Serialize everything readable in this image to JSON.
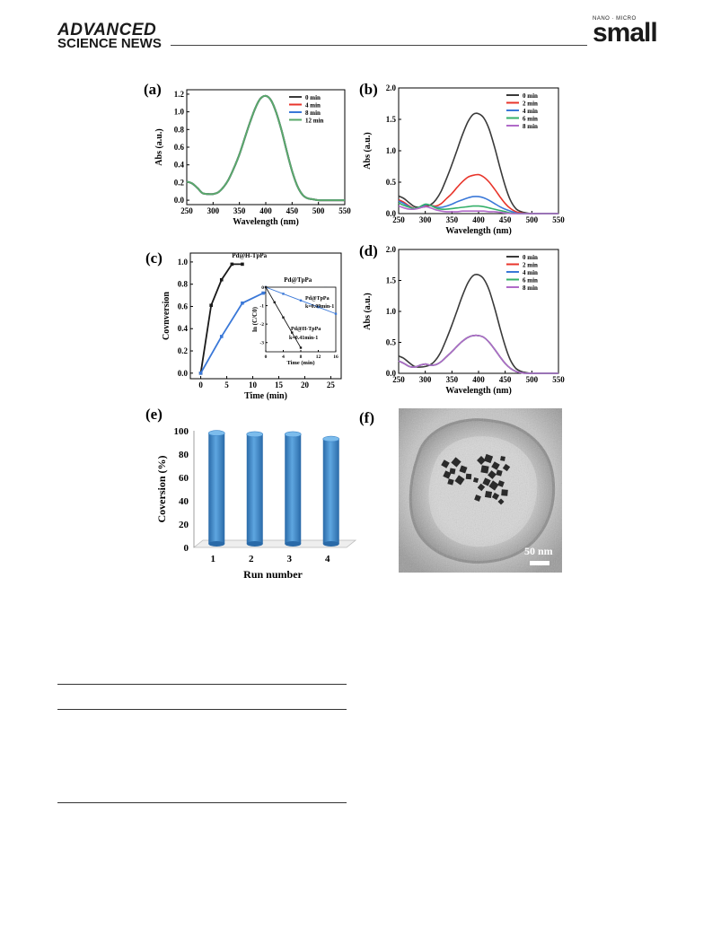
{
  "header": {
    "brand_top": "ADVANCED",
    "brand_bottom": "SCIENCE NEWS",
    "journal_kicker": "NANO · MICRO",
    "journal_name": "small"
  },
  "colors": {
    "black": "#3a3a3a",
    "red": "#e8352b",
    "blue": "#3a78d8",
    "green": "#35b06a",
    "purple": "#b06ac8",
    "panel_a_green": "#5aa86a",
    "bar_blue": "#3f86c8"
  },
  "chart_data": [
    {
      "id": "a",
      "panel_label": "(a)",
      "type": "line",
      "xlabel": "Wavelength (nm)",
      "ylabel": "Abs (a.u.)",
      "xlim": [
        250,
        550
      ],
      "ylim": [
        -0.05,
        1.25
      ],
      "xticks": [
        "250",
        "300",
        "350",
        "400",
        "450",
        "500",
        "550"
      ],
      "yticks": [
        "0.0",
        "0.2",
        "0.4",
        "0.6",
        "0.8",
        "1.0",
        "1.2"
      ],
      "legend_position": "top-right",
      "series": [
        {
          "name": "0 min",
          "color": "#3a3a3a"
        },
        {
          "name": "4 min",
          "color": "#e8352b"
        },
        {
          "name": "8 min",
          "color": "#3a78d8"
        },
        {
          "name": "12 min",
          "color": "#5aa86a"
        }
      ],
      "x": [
        250,
        260,
        270,
        280,
        290,
        300,
        310,
        320,
        330,
        340,
        350,
        360,
        370,
        380,
        390,
        400,
        410,
        420,
        430,
        440,
        450,
        460,
        470,
        480,
        490,
        500,
        520,
        550
      ],
      "y": [
        0.21,
        0.19,
        0.14,
        0.08,
        0.07,
        0.07,
        0.09,
        0.15,
        0.24,
        0.37,
        0.52,
        0.7,
        0.88,
        1.04,
        1.15,
        1.18,
        1.13,
        0.99,
        0.79,
        0.55,
        0.33,
        0.16,
        0.06,
        0.02,
        0.01,
        0.0,
        0.0,
        0.0
      ]
    },
    {
      "id": "b",
      "panel_label": "(b)",
      "type": "line",
      "xlabel": "Wavelength (nm)",
      "ylabel": "Abs (a.u.)",
      "xlim": [
        250,
        550
      ],
      "ylim": [
        0,
        2.0
      ],
      "xticks": [
        "250",
        "300",
        "350",
        "400",
        "450",
        "500",
        "550"
      ],
      "yticks": [
        "0.0",
        "0.5",
        "1.0",
        "1.5",
        "2.0"
      ],
      "legend_position": "top-right",
      "x": [
        250,
        260,
        270,
        280,
        290,
        300,
        310,
        320,
        330,
        340,
        350,
        360,
        370,
        380,
        390,
        400,
        410,
        420,
        430,
        440,
        450,
        460,
        470,
        480,
        490,
        500,
        520,
        550
      ],
      "series": [
        {
          "name": "0 min",
          "color": "#3a3a3a",
          "values": [
            0.28,
            0.24,
            0.17,
            0.11,
            0.1,
            0.11,
            0.14,
            0.22,
            0.36,
            0.56,
            0.78,
            1.02,
            1.26,
            1.46,
            1.58,
            1.59,
            1.52,
            1.34,
            1.06,
            0.74,
            0.44,
            0.21,
            0.08,
            0.03,
            0.01,
            0.0,
            0.0,
            0.0
          ]
        },
        {
          "name": "2 min",
          "color": "#e8352b",
          "values": [
            0.22,
            0.18,
            0.12,
            0.08,
            0.09,
            0.13,
            0.13,
            0.12,
            0.16,
            0.24,
            0.32,
            0.42,
            0.51,
            0.58,
            0.61,
            0.62,
            0.58,
            0.5,
            0.39,
            0.27,
            0.16,
            0.08,
            0.03,
            0.01,
            0.0,
            0.0,
            0.0,
            0.0
          ]
        },
        {
          "name": "4 min",
          "color": "#3a78d8",
          "values": [
            0.2,
            0.16,
            0.11,
            0.08,
            0.1,
            0.14,
            0.13,
            0.1,
            0.1,
            0.12,
            0.15,
            0.19,
            0.22,
            0.25,
            0.27,
            0.27,
            0.25,
            0.21,
            0.16,
            0.11,
            0.07,
            0.04,
            0.01,
            0.0,
            0.0,
            0.0,
            0.0,
            0.0
          ]
        },
        {
          "name": "6 min",
          "color": "#35b06a",
          "values": [
            0.17,
            0.13,
            0.1,
            0.08,
            0.11,
            0.15,
            0.13,
            0.09,
            0.07,
            0.07,
            0.08,
            0.09,
            0.1,
            0.11,
            0.12,
            0.12,
            0.11,
            0.09,
            0.07,
            0.05,
            0.03,
            0.01,
            0.0,
            0.0,
            0.0,
            0.0,
            0.0,
            0.0
          ]
        },
        {
          "name": "8 min",
          "color": "#b06ac8",
          "values": [
            0.12,
            0.09,
            0.07,
            0.07,
            0.09,
            0.11,
            0.09,
            0.06,
            0.04,
            0.03,
            0.03,
            0.03,
            0.04,
            0.04,
            0.04,
            0.04,
            0.04,
            0.03,
            0.03,
            0.02,
            0.01,
            0.0,
            0.0,
            0.0,
            0.0,
            0.0,
            0.0,
            0.0
          ]
        }
      ]
    },
    {
      "id": "c",
      "panel_label": "(c)",
      "type": "line",
      "xlabel": "Time (min)",
      "ylabel": "Covnversion",
      "xlim": [
        -2,
        27
      ],
      "ylim": [
        -0.05,
        1.08
      ],
      "xticks": [
        "0",
        "5",
        "10",
        "15",
        "20",
        "25"
      ],
      "yticks": [
        "0.0",
        "0.2",
        "0.4",
        "0.6",
        "0.8",
        "1.0"
      ],
      "series": [
        {
          "name": "Pd@H-TpPa",
          "color": "#1a1a1a",
          "x": [
            0,
            2,
            4,
            6,
            8
          ],
          "values": [
            0.0,
            0.61,
            0.84,
            0.98,
            0.98
          ]
        },
        {
          "name": "Pd@TpPa",
          "color": "#3a78d8",
          "x": [
            0,
            4,
            8,
            12,
            16,
            24
          ],
          "values": [
            0.0,
            0.33,
            0.63,
            0.72,
            0.75,
            0.76
          ]
        }
      ],
      "inset": {
        "type": "line",
        "xlabel": "Time (min)",
        "ylabel": "ln (C/C0)",
        "xlim": [
          0,
          16
        ],
        "ylim": [
          -3.5,
          0
        ],
        "xticks": [
          "0",
          "4",
          "8",
          "12",
          "16"
        ],
        "yticks": [
          "0",
          "-1",
          "-2",
          "-3"
        ],
        "series": [
          {
            "name": "Pd@TpPa",
            "color": "#3a78d8",
            "x": [
              0,
              4,
              8,
              12,
              16
            ],
            "values": [
              0,
              -0.36,
              -0.72,
              -1.08,
              -1.44
            ]
          },
          {
            "name": "Pd@H-TpPa",
            "color": "#1a1a1a",
            "x": [
              0,
              2,
              4,
              6,
              8
            ],
            "values": [
              0,
              -0.82,
              -1.64,
              -2.46,
              -3.28
            ]
          }
        ],
        "annotations": [
          "Pd@TpPa",
          "k=0.09min-1",
          "Pd@H-TpPa",
          "k=0.41min-1"
        ]
      }
    },
    {
      "id": "d",
      "panel_label": "(d)",
      "type": "line",
      "xlabel": "Wavelength (nm)",
      "ylabel": "Abs (a.u.)",
      "xlim": [
        250,
        550
      ],
      "ylim": [
        0,
        2.0
      ],
      "xticks": [
        "250",
        "300",
        "350",
        "400",
        "450",
        "500",
        "550"
      ],
      "yticks": [
        "0.0",
        "0.5",
        "1.0",
        "1.5",
        "2.0"
      ],
      "legend_position": "top-right",
      "x": [
        250,
        260,
        270,
        280,
        290,
        300,
        310,
        320,
        330,
        340,
        350,
        360,
        370,
        380,
        390,
        400,
        410,
        420,
        430,
        440,
        450,
        460,
        470,
        480,
        490,
        500,
        520,
        550
      ],
      "series": [
        {
          "name": "0 min",
          "color": "#3a3a3a",
          "values": [
            0.28,
            0.24,
            0.17,
            0.11,
            0.1,
            0.11,
            0.14,
            0.22,
            0.36,
            0.56,
            0.78,
            1.02,
            1.26,
            1.46,
            1.58,
            1.59,
            1.52,
            1.34,
            1.06,
            0.74,
            0.44,
            0.21,
            0.08,
            0.03,
            0.01,
            0.0,
            0.0,
            0.0
          ]
        },
        {
          "name": "2 min",
          "color": "#e8352b",
          "values": [
            0.2,
            0.16,
            0.11,
            0.1,
            0.13,
            0.15,
            0.13,
            0.14,
            0.19,
            0.27,
            0.35,
            0.44,
            0.52,
            0.58,
            0.61,
            0.61,
            0.58,
            0.5,
            0.39,
            0.27,
            0.16,
            0.08,
            0.03,
            0.01,
            0.0,
            0.0,
            0.0,
            0.0
          ]
        },
        {
          "name": "4 min",
          "color": "#3a78d8",
          "values": [
            0.2,
            0.16,
            0.11,
            0.1,
            0.13,
            0.15,
            0.13,
            0.14,
            0.19,
            0.27,
            0.35,
            0.44,
            0.52,
            0.58,
            0.61,
            0.61,
            0.58,
            0.5,
            0.39,
            0.27,
            0.16,
            0.08,
            0.03,
            0.01,
            0.0,
            0.0,
            0.0,
            0.0
          ]
        },
        {
          "name": "6 min",
          "color": "#35b06a",
          "values": [
            0.2,
            0.16,
            0.11,
            0.1,
            0.13,
            0.15,
            0.13,
            0.14,
            0.19,
            0.27,
            0.35,
            0.44,
            0.52,
            0.58,
            0.61,
            0.61,
            0.58,
            0.5,
            0.39,
            0.27,
            0.16,
            0.08,
            0.03,
            0.01,
            0.0,
            0.0,
            0.0,
            0.0
          ]
        },
        {
          "name": "8 min",
          "color": "#b06ac8",
          "values": [
            0.2,
            0.16,
            0.11,
            0.1,
            0.13,
            0.15,
            0.13,
            0.14,
            0.19,
            0.27,
            0.35,
            0.44,
            0.52,
            0.58,
            0.61,
            0.61,
            0.58,
            0.5,
            0.39,
            0.27,
            0.16,
            0.08,
            0.03,
            0.01,
            0.0,
            0.0,
            0.0,
            0.0
          ]
        }
      ]
    },
    {
      "id": "e",
      "panel_label": "(e)",
      "type": "bar",
      "xlabel": "Run number",
      "ylabel": "Coversion (%)",
      "ylim": [
        0,
        100
      ],
      "yticks": [
        "0",
        "20",
        "40",
        "60",
        "80",
        "100"
      ],
      "categories": [
        "1",
        "2",
        "3",
        "4"
      ],
      "values": [
        98,
        97,
        97,
        93
      ]
    }
  ],
  "figure_f": {
    "panel_label": "(f)",
    "scale_label": "50 nm"
  }
}
